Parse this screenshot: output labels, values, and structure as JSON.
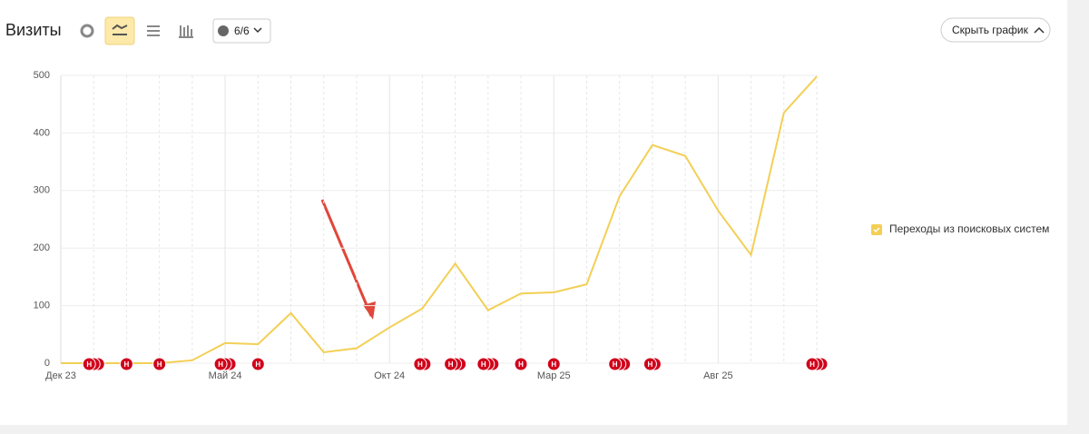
{
  "header": {
    "title": "Визиты",
    "segments": "6/6",
    "hide_button": "Скрыть график"
  },
  "chart_data": {
    "type": "line",
    "categories": [
      "Дек 23",
      null,
      null,
      null,
      null,
      "Май 24",
      null,
      null,
      null,
      null,
      "Окт 24",
      null,
      null,
      null,
      null,
      "Мар 25",
      null,
      null,
      null,
      null,
      "Авг 25",
      null,
      null,
      null
    ],
    "series": [
      {
        "name": "Переходы из поисковых систем",
        "color": "#f3cf55",
        "values": [
          0,
          0,
          0,
          0,
          5,
          35,
          33,
          87,
          19,
          26,
          62,
          95,
          173,
          92,
          121,
          123,
          137,
          290,
          379,
          360,
          265,
          188,
          435,
          498
        ]
      }
    ],
    "ylim": [
      0,
      500
    ],
    "yticks": [
      0,
      100,
      200,
      300,
      400,
      500
    ],
    "grid": true,
    "note_label": "Н",
    "notes": [
      0,
      3,
      1,
      1,
      0,
      3,
      1,
      0,
      0,
      0,
      0,
      2,
      3,
      3,
      1,
      1,
      0,
      3,
      2,
      0,
      0,
      0,
      0,
      3
    ]
  }
}
